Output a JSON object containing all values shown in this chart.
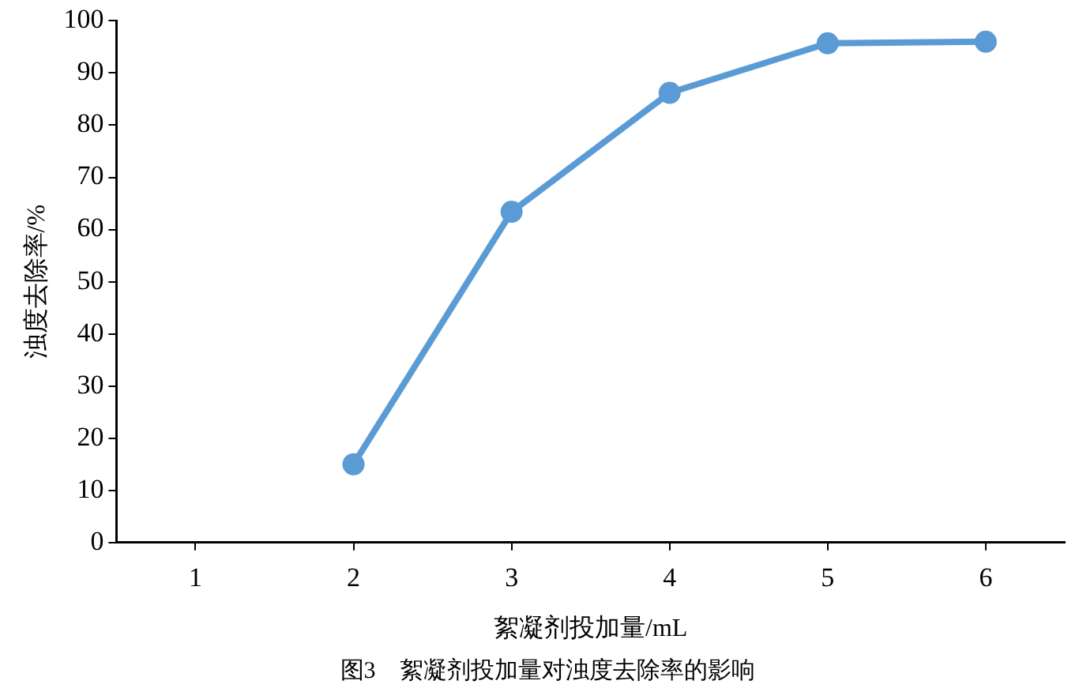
{
  "chart_data": {
    "type": "line",
    "title": "图3　絮凝剂投加量对浊度去除率的影响",
    "xlabel": "絮凝剂投加量/mL",
    "ylabel": "浊度去除率/%",
    "categories": [
      "1",
      "2",
      "3",
      "4",
      "5",
      "6"
    ],
    "series": [
      {
        "color": "#5b9bd5",
        "values": [
          null,
          15,
          63.4,
          86.2,
          95.7,
          96
        ]
      }
    ],
    "ylim": [
      0,
      100
    ],
    "yticks": [
      0,
      10,
      20,
      30,
      40,
      50,
      60,
      70,
      80,
      90,
      100
    ],
    "grid": false,
    "legend": false,
    "marker": "circle",
    "line_style": "solid"
  }
}
